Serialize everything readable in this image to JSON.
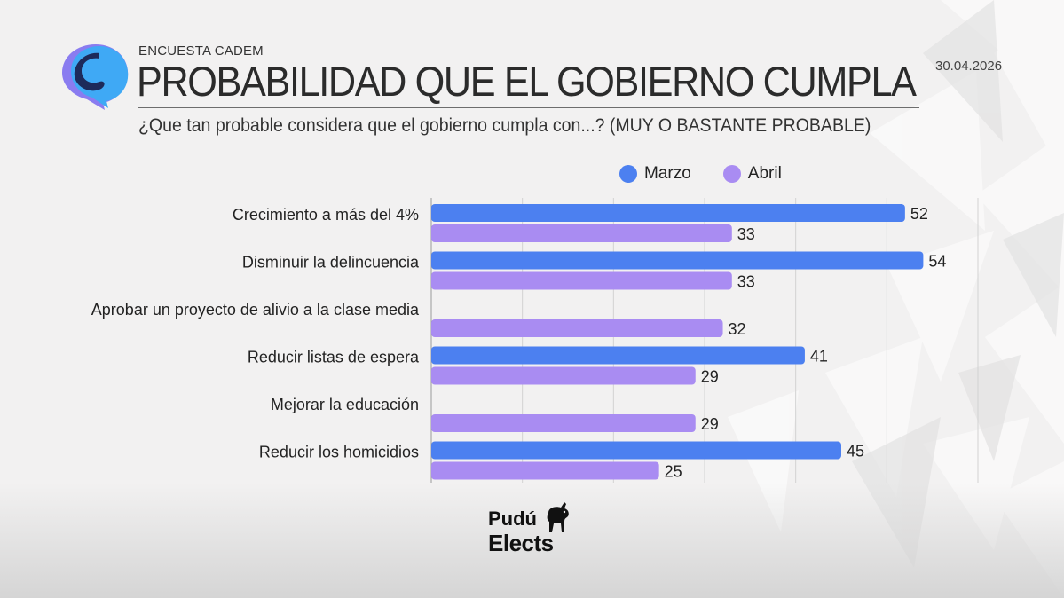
{
  "header": {
    "kicker": "ENCUESTA CADEM",
    "title": "PROBABILIDAD QUE EL GOBIERNO CUMPLA",
    "date": "30.04.2026",
    "subtitle": "¿Que tan probable considera que el gobierno cumpla con...? (MUY O BASTANTE PROBABLE)"
  },
  "colors": {
    "marzo": "#4c80f0",
    "abril": "#a98cf2",
    "accent_logo_blue": "#3fa9f5",
    "accent_logo_purple": "#8a7cf0",
    "accent_logo_dark": "#1d2a5a"
  },
  "chart_data": {
    "type": "bar",
    "orientation": "horizontal",
    "categories": [
      "Crecimiento a más del 4%",
      "Disminuir la delincuencia",
      "Aprobar un proyecto de alivio a la clase media",
      "Reducir listas de espera",
      "Mejorar la educación",
      "Reducir los homicidios"
    ],
    "series": [
      {
        "name": "Marzo",
        "values": [
          52,
          54,
          null,
          41,
          null,
          45
        ]
      },
      {
        "name": "Abril",
        "values": [
          33,
          33,
          32,
          29,
          29,
          25
        ]
      }
    ],
    "xlim": [
      0,
      60
    ],
    "grid": true,
    "legend": "top-right",
    "data_labels": true
  },
  "footer": {
    "brand_line1": "Pudú",
    "brand_line2": "Elects",
    "brand_icon": "pudu-deer-icon"
  }
}
